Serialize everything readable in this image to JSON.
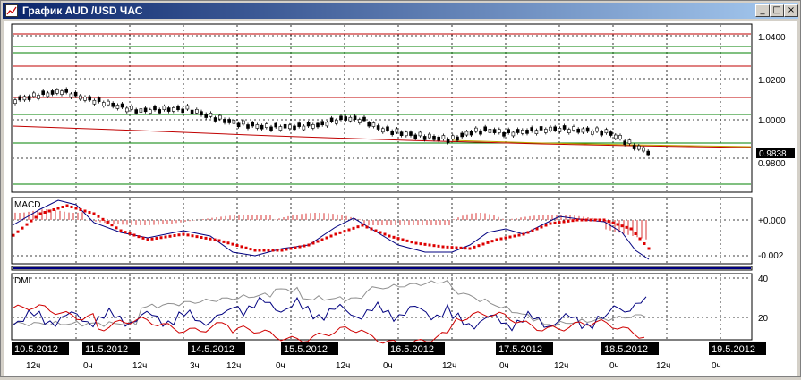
{
  "window": {
    "title": "График AUD /USD  ЧАС",
    "minimize_glyph": "_",
    "maximize_glyph": "□",
    "close_glyph": "×",
    "icon": "chart-icon"
  },
  "price_panel": {
    "axis_labels": [
      "1.0400",
      "1.0200",
      "1.0000",
      "0.9800"
    ],
    "current_price": "0.9838"
  },
  "macd_panel": {
    "title": "MACD",
    "axis_labels": [
      "+0.000",
      "-0.002"
    ]
  },
  "dmi_panel": {
    "title": "DMI",
    "axis_labels": [
      "40",
      "20"
    ]
  },
  "time_axis": {
    "dates": [
      "10.5.2012",
      "11.5.2012",
      "14.5.2012",
      "15.5.2012",
      "16.5.2012",
      "17.5.2012",
      "18.5.2012",
      "19.5.2012"
    ],
    "hours": [
      "12ч",
      "0ч",
      "12ч",
      "3ч",
      "12ч",
      "0ч",
      "12ч",
      "0ч",
      "12ч",
      "0ч",
      "12ч",
      "0ч",
      "12ч",
      "0ч"
    ]
  },
  "colors": {
    "title_start": "#0a246a",
    "title_end": "#a6caf0",
    "red_line": "#c00000",
    "green_line": "#008000",
    "blue_line": "#000080",
    "macd_dots": "#dd0000"
  }
}
